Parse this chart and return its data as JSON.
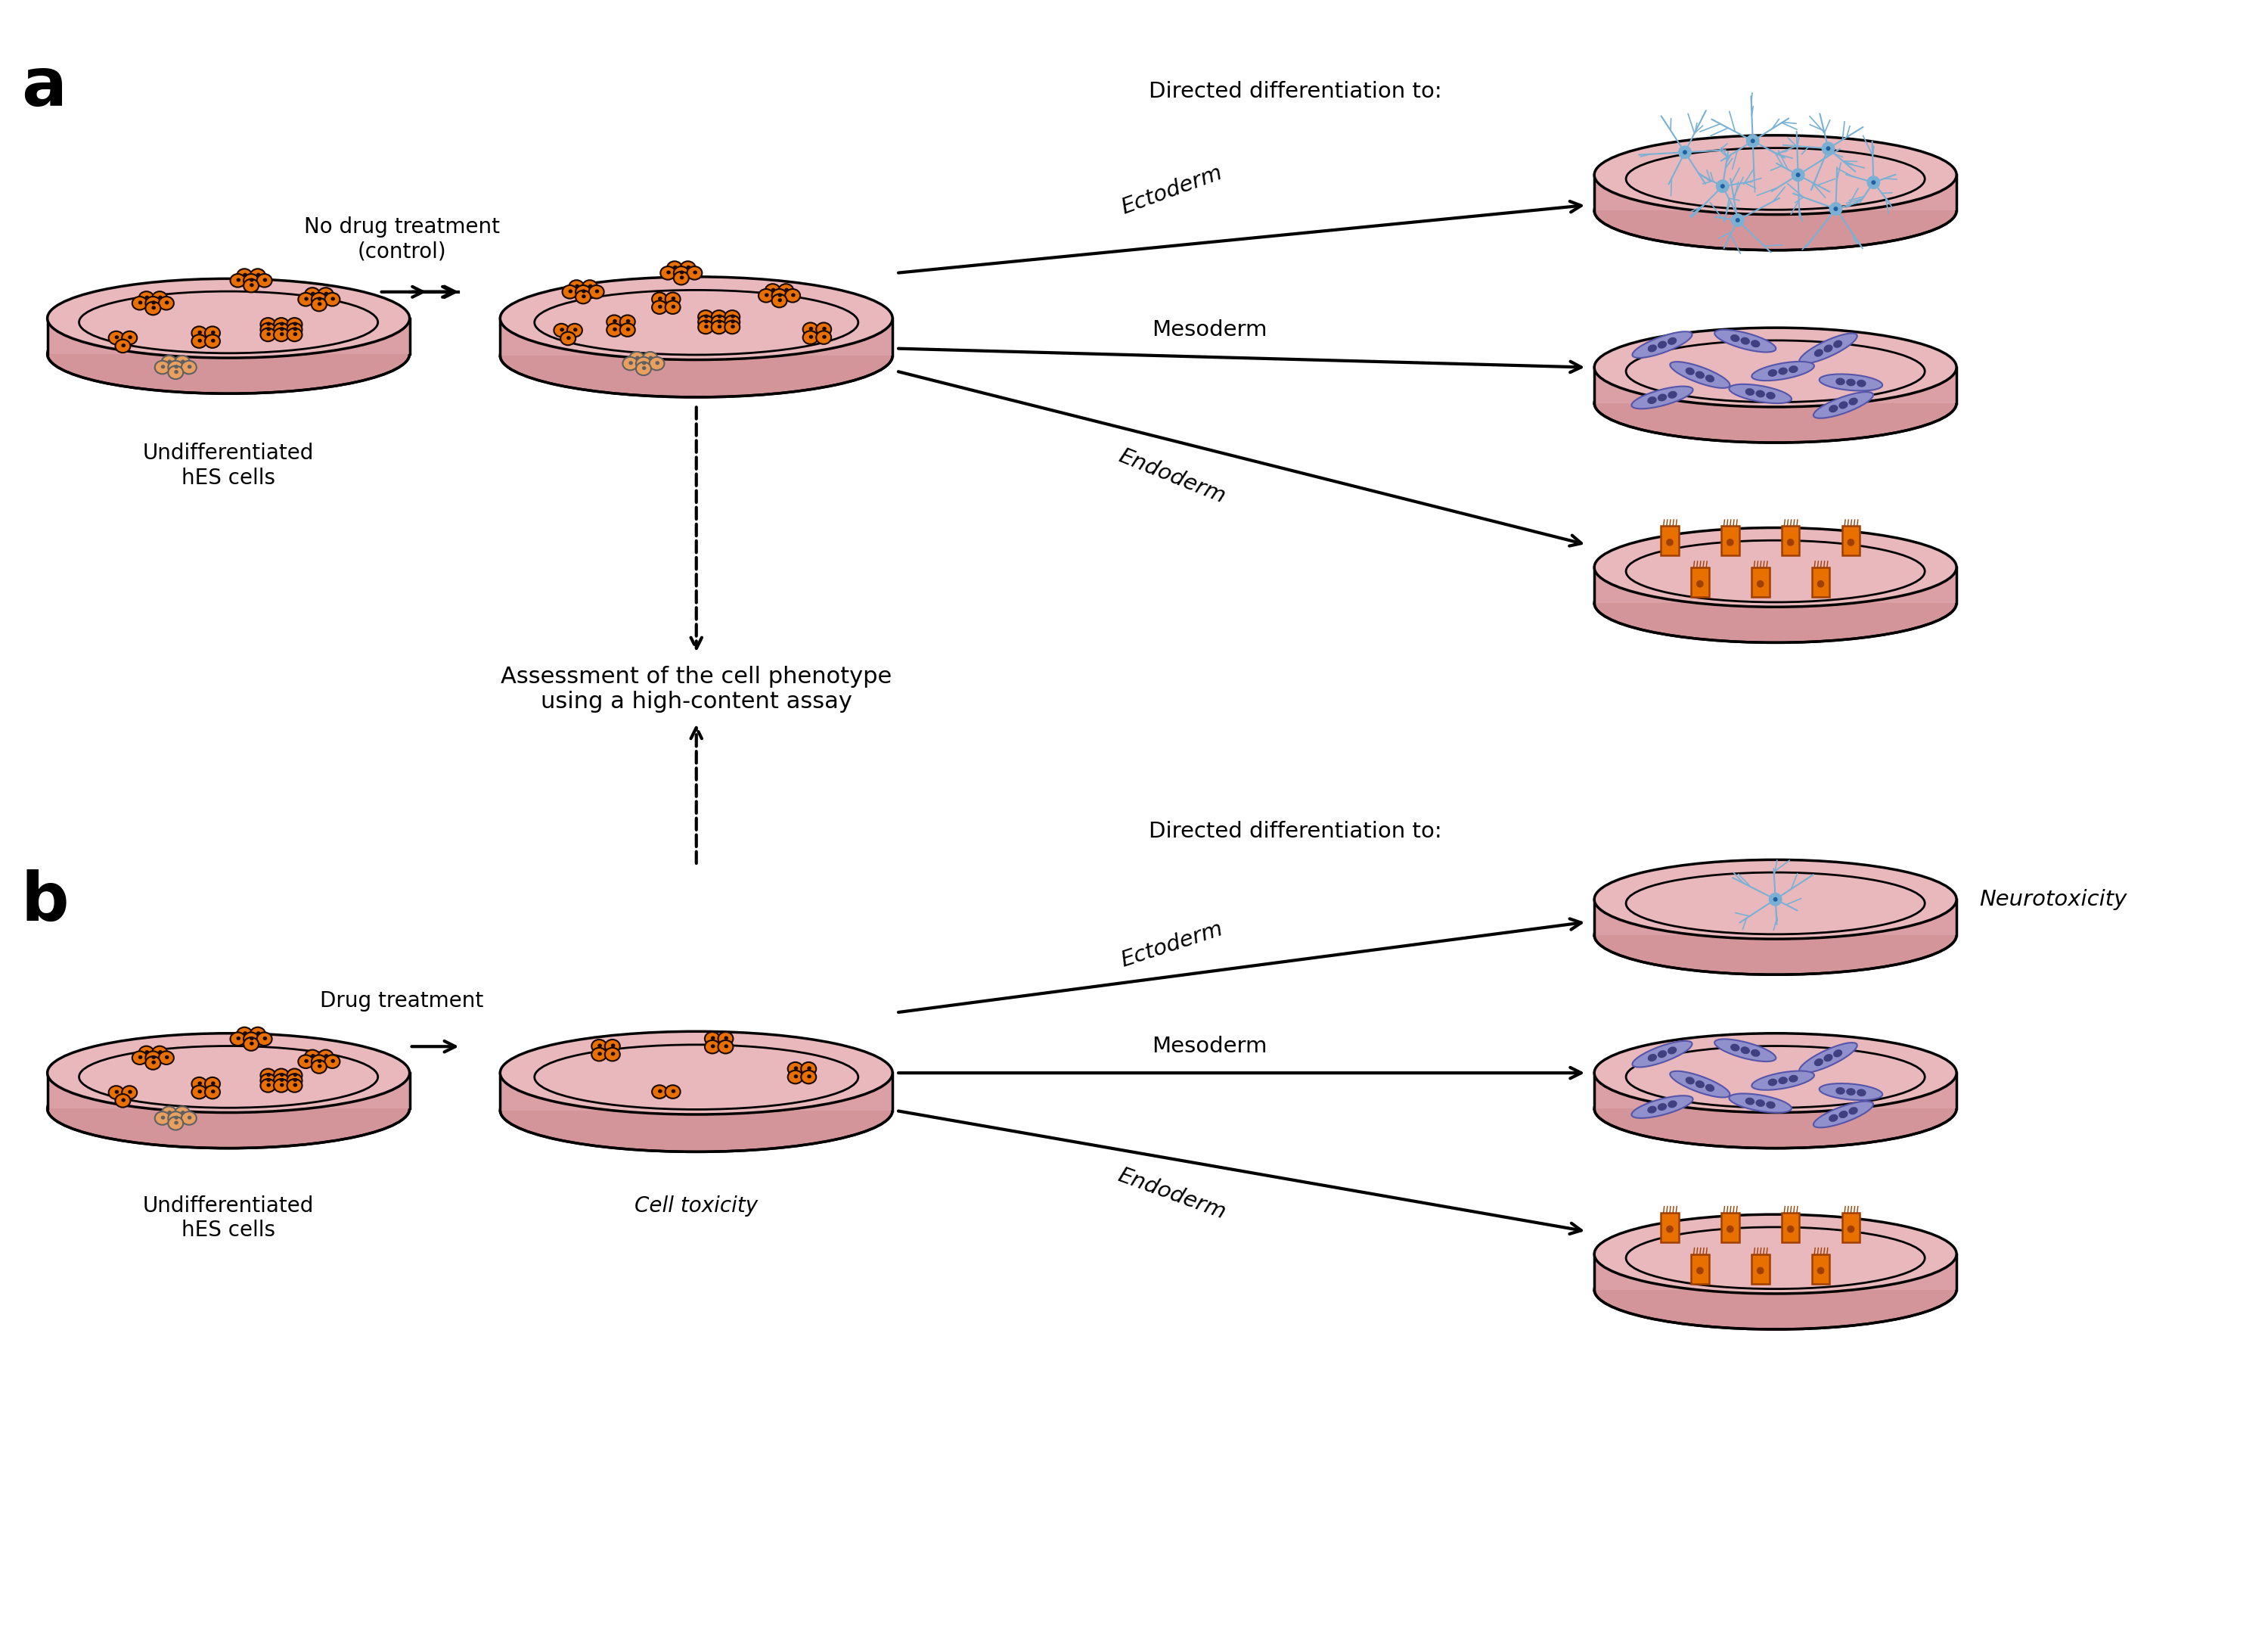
{
  "bg_color": "#ffffff",
  "dish_fill": "#e8b8bc",
  "dish_rim_fill": "#d4959a",
  "dish_side_fill": "#daa0a5",
  "cell_orange": "#e87000",
  "cell_orange_light": "#e8a060",
  "cell_dark": "#1a0800",
  "neuron_color": "#7ab0d4",
  "neuron_dark": "#2060a0",
  "muscle_color": "#9090cc",
  "muscle_edge": "#5555aa",
  "muscle_dark": "#404080",
  "endoderm_color": "#e87000",
  "endoderm_edge": "#a04000",
  "label_a": "a",
  "label_b": "b",
  "text_undiff": "Undifferentiated\nhES cells",
  "text_no_drug": "No drug treatment\n(control)",
  "text_drug": "Drug treatment",
  "text_directed": "Directed differentiation to:",
  "text_ecto": "Ectoderm",
  "text_meso": "Mesoderm",
  "text_endo": "Endoderm",
  "text_assessment": "Assessment of the cell phenotype\nusing a high-content assay",
  "text_cell_tox": "Cell toxicity",
  "text_neurotox": "Neurotoxicity"
}
